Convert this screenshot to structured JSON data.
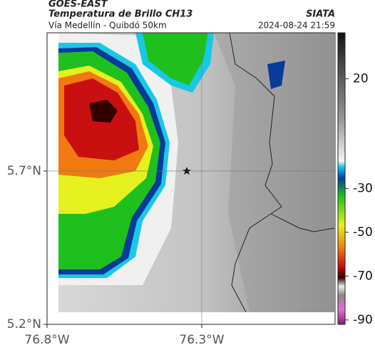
{
  "header": {
    "title": "GOES-EAST",
    "subtitle": "Temperatura de Brillo CH13",
    "source": "SIATA",
    "region": "Vía Medellín - Quibdó 50km",
    "timestamp": "2024-08-24 21:59"
  },
  "map": {
    "xlim": [
      -76.8,
      -75.869
    ],
    "ylim": [
      5.2,
      6.151
    ],
    "xticks": [
      {
        "value": -76.8,
        "label": "76.8°W"
      },
      {
        "value": -76.3,
        "label": "76.3°W"
      }
    ],
    "yticks": [
      {
        "value": 5.7,
        "label": "5.7°N"
      },
      {
        "value": 5.2,
        "label": "5.2°N"
      }
    ]
  },
  "colorbar": {
    "lim": [
      41,
      -92
    ],
    "ticks": [
      20,
      -30,
      -50,
      -70,
      -90
    ]
  }
}
